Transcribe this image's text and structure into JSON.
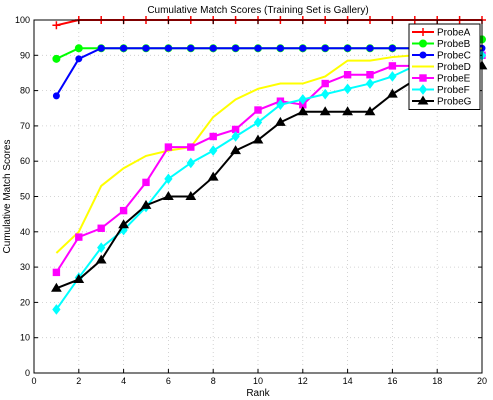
{
  "chart_data": {
    "type": "line",
    "title": "Cumulative Match Scores (Training Set is Gallery)",
    "xlabel": "Rank",
    "ylabel": "Cumulative Match Scores",
    "xlim": [
      0,
      20
    ],
    "ylim": [
      0,
      100
    ],
    "xticks": [
      0,
      2,
      4,
      6,
      8,
      10,
      12,
      14,
      16,
      18,
      20
    ],
    "yticks": [
      0,
      10,
      20,
      30,
      40,
      50,
      60,
      70,
      80,
      90,
      100
    ],
    "grid": true,
    "legend_position": "top-right",
    "x": [
      1,
      2,
      3,
      4,
      5,
      6,
      7,
      8,
      9,
      10,
      11,
      12,
      13,
      14,
      15,
      16,
      17,
      18,
      19,
      20
    ],
    "series": [
      {
        "name": "ProbeA",
        "color": "#ff0000",
        "marker": "plus",
        "values": [
          98.5,
          100,
          100,
          100,
          100,
          100,
          100,
          100,
          100,
          100,
          100,
          100,
          100,
          100,
          100,
          100,
          100,
          100,
          100,
          100
        ]
      },
      {
        "name": "ProbeB",
        "color": "#00ff00",
        "marker": "circle",
        "values": [
          89,
          92,
          92,
          92,
          92,
          92,
          92,
          92,
          92,
          92,
          92,
          92,
          92,
          92,
          92,
          92,
          92,
          92,
          92,
          94.5
        ]
      },
      {
        "name": "ProbeC",
        "color": "#0000ff",
        "marker": "dot",
        "values": [
          78.5,
          89,
          92,
          92,
          92,
          92,
          92,
          92,
          92,
          92,
          92,
          92,
          92,
          92,
          92,
          92,
          92,
          92,
          92,
          92
        ]
      },
      {
        "name": "ProbeD",
        "color": "#ffff00",
        "marker": "none",
        "values": [
          34,
          40,
          53,
          58,
          61.5,
          63,
          64,
          72.5,
          77.5,
          80.5,
          82,
          82,
          84,
          88.5,
          88.5,
          89.5,
          90,
          90.5,
          91,
          92
        ]
      },
      {
        "name": "ProbeE",
        "color": "#ff00ff",
        "marker": "square",
        "values": [
          28.5,
          38.5,
          41,
          46,
          54,
          64,
          64,
          67,
          69,
          74.5,
          77,
          76,
          82,
          84.5,
          84.5,
          87,
          87,
          87.5,
          88,
          90
        ]
      },
      {
        "name": "ProbeF",
        "color": "#00ffff",
        "marker": "diamond",
        "values": [
          18,
          27,
          35.5,
          40.5,
          47,
          55,
          59.5,
          63,
          67,
          71,
          76,
          77.5,
          79,
          80.5,
          82,
          84,
          87,
          88,
          89,
          90
        ]
      },
      {
        "name": "ProbeG",
        "color": "#000000",
        "marker": "triangle",
        "values": [
          24,
          26.5,
          32,
          42,
          47.5,
          50,
          50,
          55.5,
          63,
          66,
          71,
          74,
          74,
          74,
          74,
          79,
          83,
          85,
          87,
          87
        ]
      }
    ]
  }
}
